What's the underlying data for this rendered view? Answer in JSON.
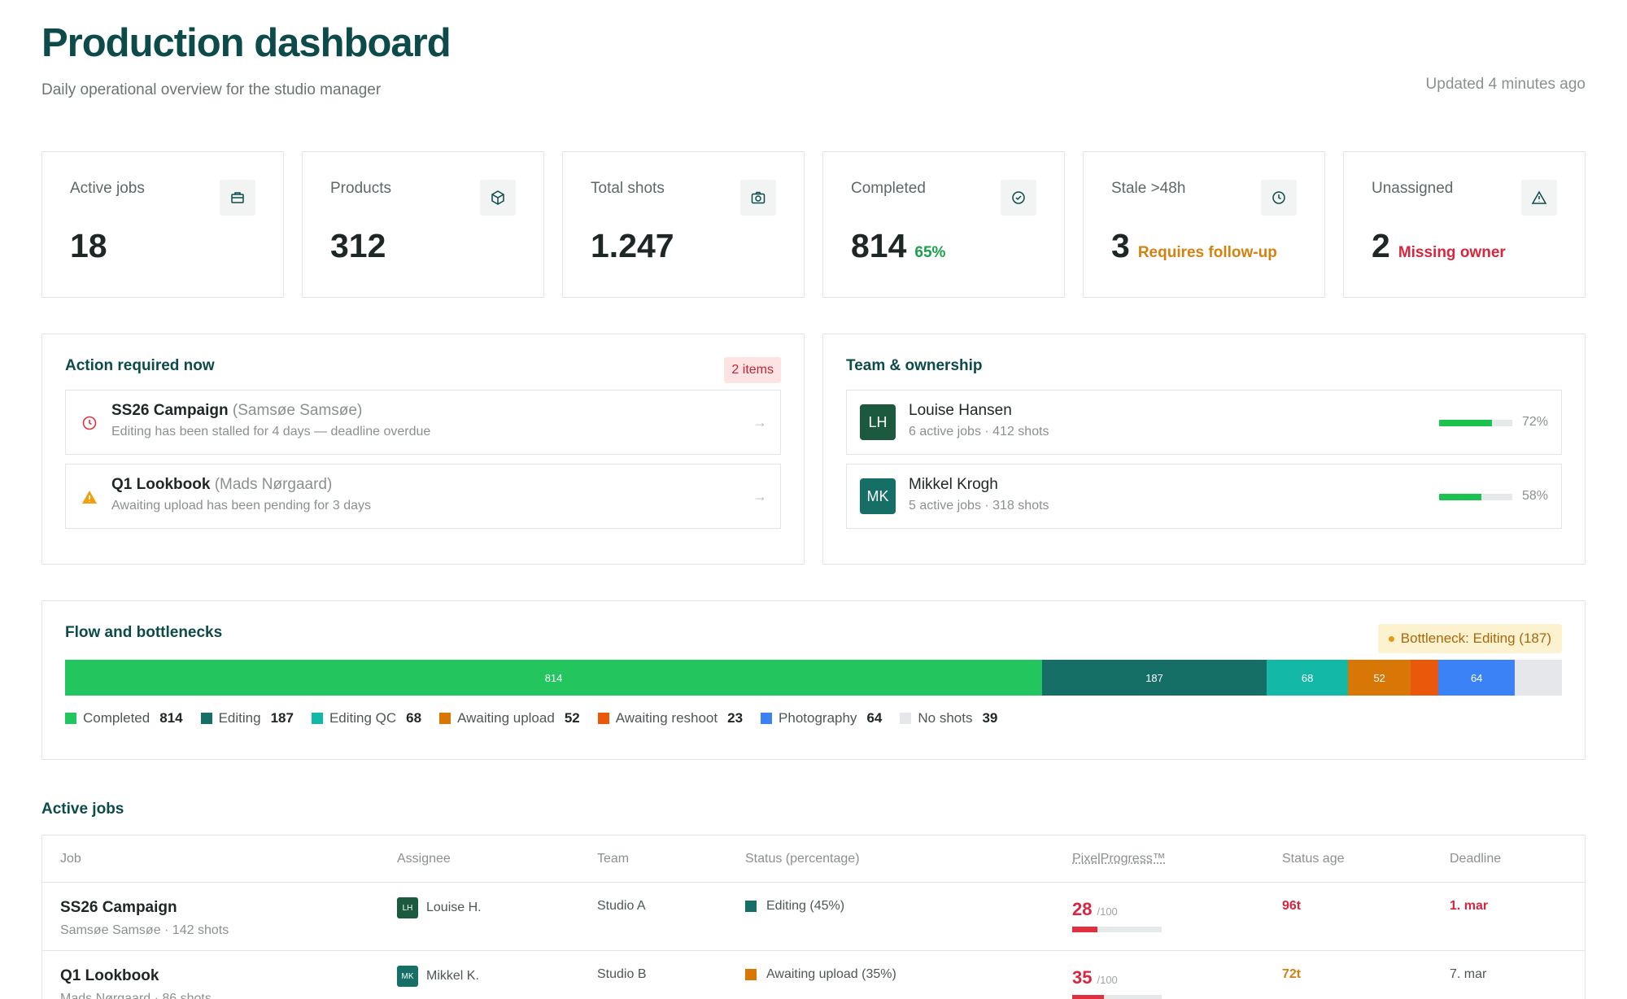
{
  "header": {
    "title": "Production dashboard",
    "subtitle": "Daily operational overview for the studio manager",
    "updated": "Updated 4 minutes ago"
  },
  "kpis": [
    {
      "label": "Active jobs",
      "value": "18",
      "note": "",
      "icon": "briefcase-icon"
    },
    {
      "label": "Products",
      "value": "312",
      "note": "",
      "icon": "box-icon"
    },
    {
      "label": "Total shots",
      "value": "1.247",
      "note": "",
      "icon": "camera-icon"
    },
    {
      "label": "Completed",
      "value": "814",
      "note": "65%",
      "icon": "check-circle-icon"
    },
    {
      "label": "Stale >48h",
      "value": "3",
      "note": "Requires follow-up",
      "icon": "clock-icon"
    },
    {
      "label": "Unassigned",
      "value": "2",
      "note": "Missing owner",
      "icon": "warning-icon"
    }
  ],
  "action": {
    "title": "Action required now",
    "count": "2 items",
    "items": [
      {
        "title": "SS26 Campaign",
        "client": "(Samsøe Samsøe)",
        "sub": "Editing has been stalled for 4 days — deadline overdue",
        "icon": "clock-icon"
      },
      {
        "title": "Q1 Lookbook",
        "client": "(Mads Nørgaard)",
        "sub": "Awaiting upload has been pending for 3 days",
        "icon": "warning-icon"
      }
    ]
  },
  "team": {
    "title": "Team & ownership",
    "members": [
      {
        "initials": "LH",
        "name": "Louise Hansen",
        "sub": "6 active jobs · 412 shots",
        "pct_label": "72%",
        "pct": 72,
        "color": "#1b5a3e"
      },
      {
        "initials": "MK",
        "name": "Mikkel Krogh",
        "sub": "5 active jobs · 318 shots",
        "pct_label": "58%",
        "pct": 58,
        "color": "#166f66"
      }
    ]
  },
  "flow": {
    "title": "Flow and bottlenecks",
    "bottleneck": "Bottleneck: Editing (187)",
    "segments": [
      {
        "label": "Completed",
        "value": 814,
        "bar_label": "814",
        "color": "#22c55e"
      },
      {
        "label": "Editing",
        "value": 187,
        "bar_label": "187",
        "color": "#166f66"
      },
      {
        "label": "Editing QC",
        "value": 68,
        "bar_label": "68",
        "color": "#14b8a6"
      },
      {
        "label": "Awaiting upload",
        "value": 52,
        "bar_label": "52",
        "color": "#d97706"
      },
      {
        "label": "Awaiting reshoot",
        "value": 23,
        "bar_label": "",
        "color": "#ea580c"
      },
      {
        "label": "Photography",
        "value": 64,
        "bar_label": "64",
        "color": "#3b82f6"
      },
      {
        "label": "No shots",
        "value": 39,
        "bar_label": "",
        "color": "#e5e7eb"
      }
    ]
  },
  "jobs": {
    "title": "Active jobs",
    "columns": [
      "Job",
      "Assignee",
      "Team",
      "Status (percentage)",
      "PixelProgress™",
      "Status age",
      "Deadline"
    ],
    "rows": [
      {
        "name": "SS26 Campaign",
        "sub": "Samsøe Samsøe · 142 shots",
        "av": "LH",
        "av_color": "#1b5a3e",
        "assignee": "Louise H.",
        "team": "Studio A",
        "status": "Editing (45%)",
        "status_color": "#166f66",
        "pp": "28",
        "pp_value": 28,
        "pp_max": "/100",
        "age": "96t",
        "age_class": "age-red",
        "deadline": "1. mar",
        "dl_class": "dl-red"
      },
      {
        "name": "Q1 Lookbook",
        "sub": "Mads Nørgaard · 86 shots",
        "av": "MK",
        "av_color": "#166f66",
        "assignee": "Mikkel K.",
        "team": "Studio B",
        "status": "Awaiting upload (35%)",
        "status_color": "#d97706",
        "pp": "35",
        "pp_value": 35,
        "pp_max": "/100",
        "age": "72t",
        "age_class": "age-orange",
        "deadline": "7. mar",
        "dl_class": "dl-plain"
      }
    ]
  }
}
